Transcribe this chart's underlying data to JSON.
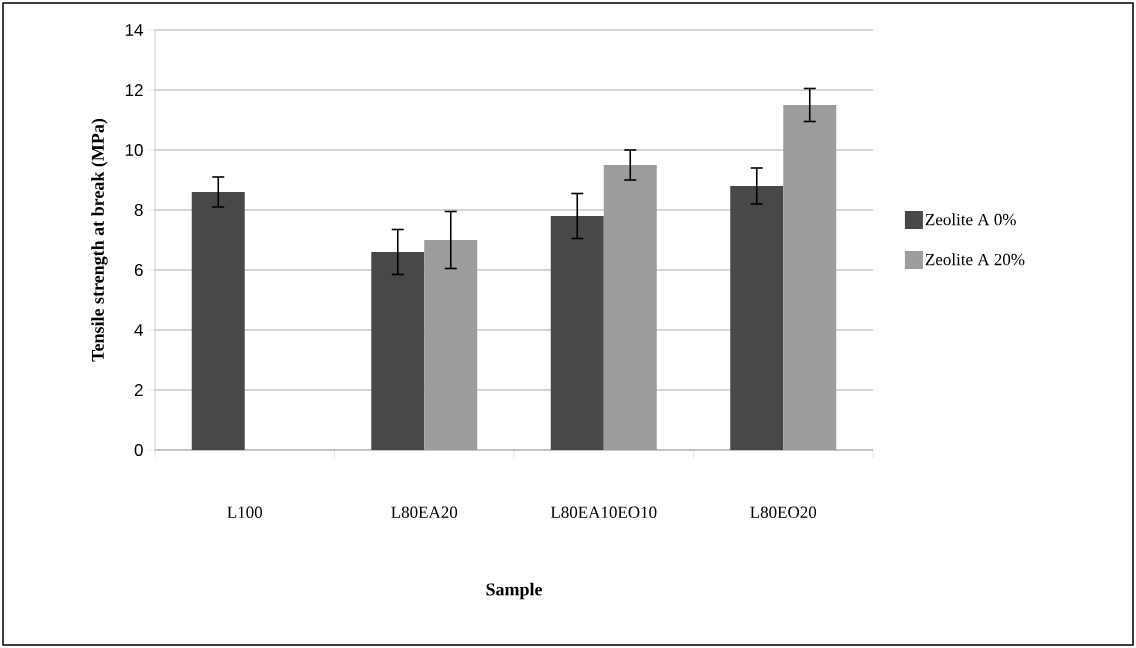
{
  "chart_data": {
    "type": "bar",
    "xlabel": "Sample",
    "ylabel": "Tensile strength at break (MPa)",
    "categories": [
      "L100",
      "L80EA20",
      "L80EA10EO10",
      "L80EO20"
    ],
    "series": [
      {
        "name": "Zeolite A 0%",
        "color": "#484848",
        "values": [
          8.6,
          6.6,
          7.8,
          8.8
        ],
        "errors": [
          0.5,
          0.75,
          0.75,
          0.6
        ]
      },
      {
        "name": "Zeolite A 20%",
        "color": "#9c9c9c",
        "values": [
          null,
          7.0,
          9.5,
          11.5
        ],
        "errors": [
          null,
          0.95,
          0.5,
          0.55
        ]
      }
    ],
    "ylim": [
      0,
      14
    ],
    "yticks": [
      0,
      2,
      4,
      6,
      8,
      10,
      12,
      14
    ],
    "grid": "y",
    "legend": "right"
  }
}
